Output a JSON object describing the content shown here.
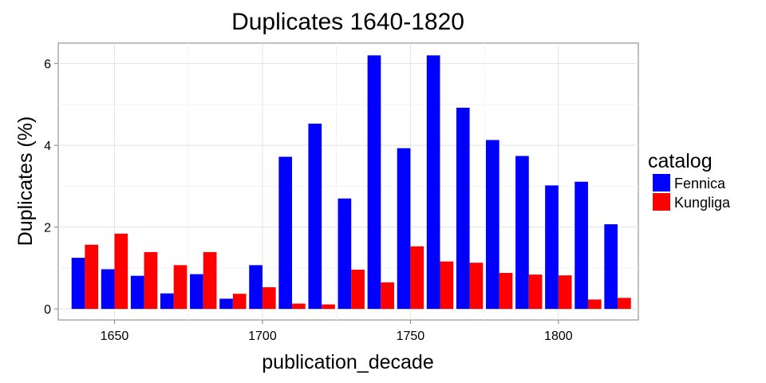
{
  "chart_data": {
    "type": "bar",
    "title": "Duplicates 1640-1820",
    "xlabel": "publication_decade",
    "ylabel": "Duplicates (%)",
    "x": [
      1640,
      1650,
      1660,
      1670,
      1680,
      1690,
      1700,
      1710,
      1720,
      1730,
      1740,
      1750,
      1760,
      1770,
      1780,
      1790,
      1800,
      1810,
      1820
    ],
    "xlim": [
      1631,
      1827
    ],
    "ylim": [
      -0.27,
      6.5
    ],
    "x_ticks": [
      1650,
      1700,
      1750,
      1800
    ],
    "y_ticks": [
      0,
      2,
      4,
      6
    ],
    "grid": true,
    "legend": {
      "title": "catalog",
      "position": "right"
    },
    "series": [
      {
        "name": "Fennica",
        "color": "#0000ff",
        "values": [
          1.25,
          0.97,
          0.81,
          0.38,
          0.85,
          0.25,
          1.07,
          3.72,
          4.53,
          2.7,
          6.2,
          3.93,
          6.2,
          4.92,
          4.13,
          3.74,
          3.02,
          3.11,
          2.07
        ]
      },
      {
        "name": "Kungliga",
        "color": "#ff0000",
        "values": [
          1.57,
          1.84,
          1.39,
          1.07,
          1.39,
          0.37,
          0.53,
          0.13,
          0.11,
          0.96,
          0.65,
          1.53,
          1.16,
          1.13,
          0.88,
          0.84,
          0.82,
          0.23,
          0.27
        ]
      }
    ]
  }
}
